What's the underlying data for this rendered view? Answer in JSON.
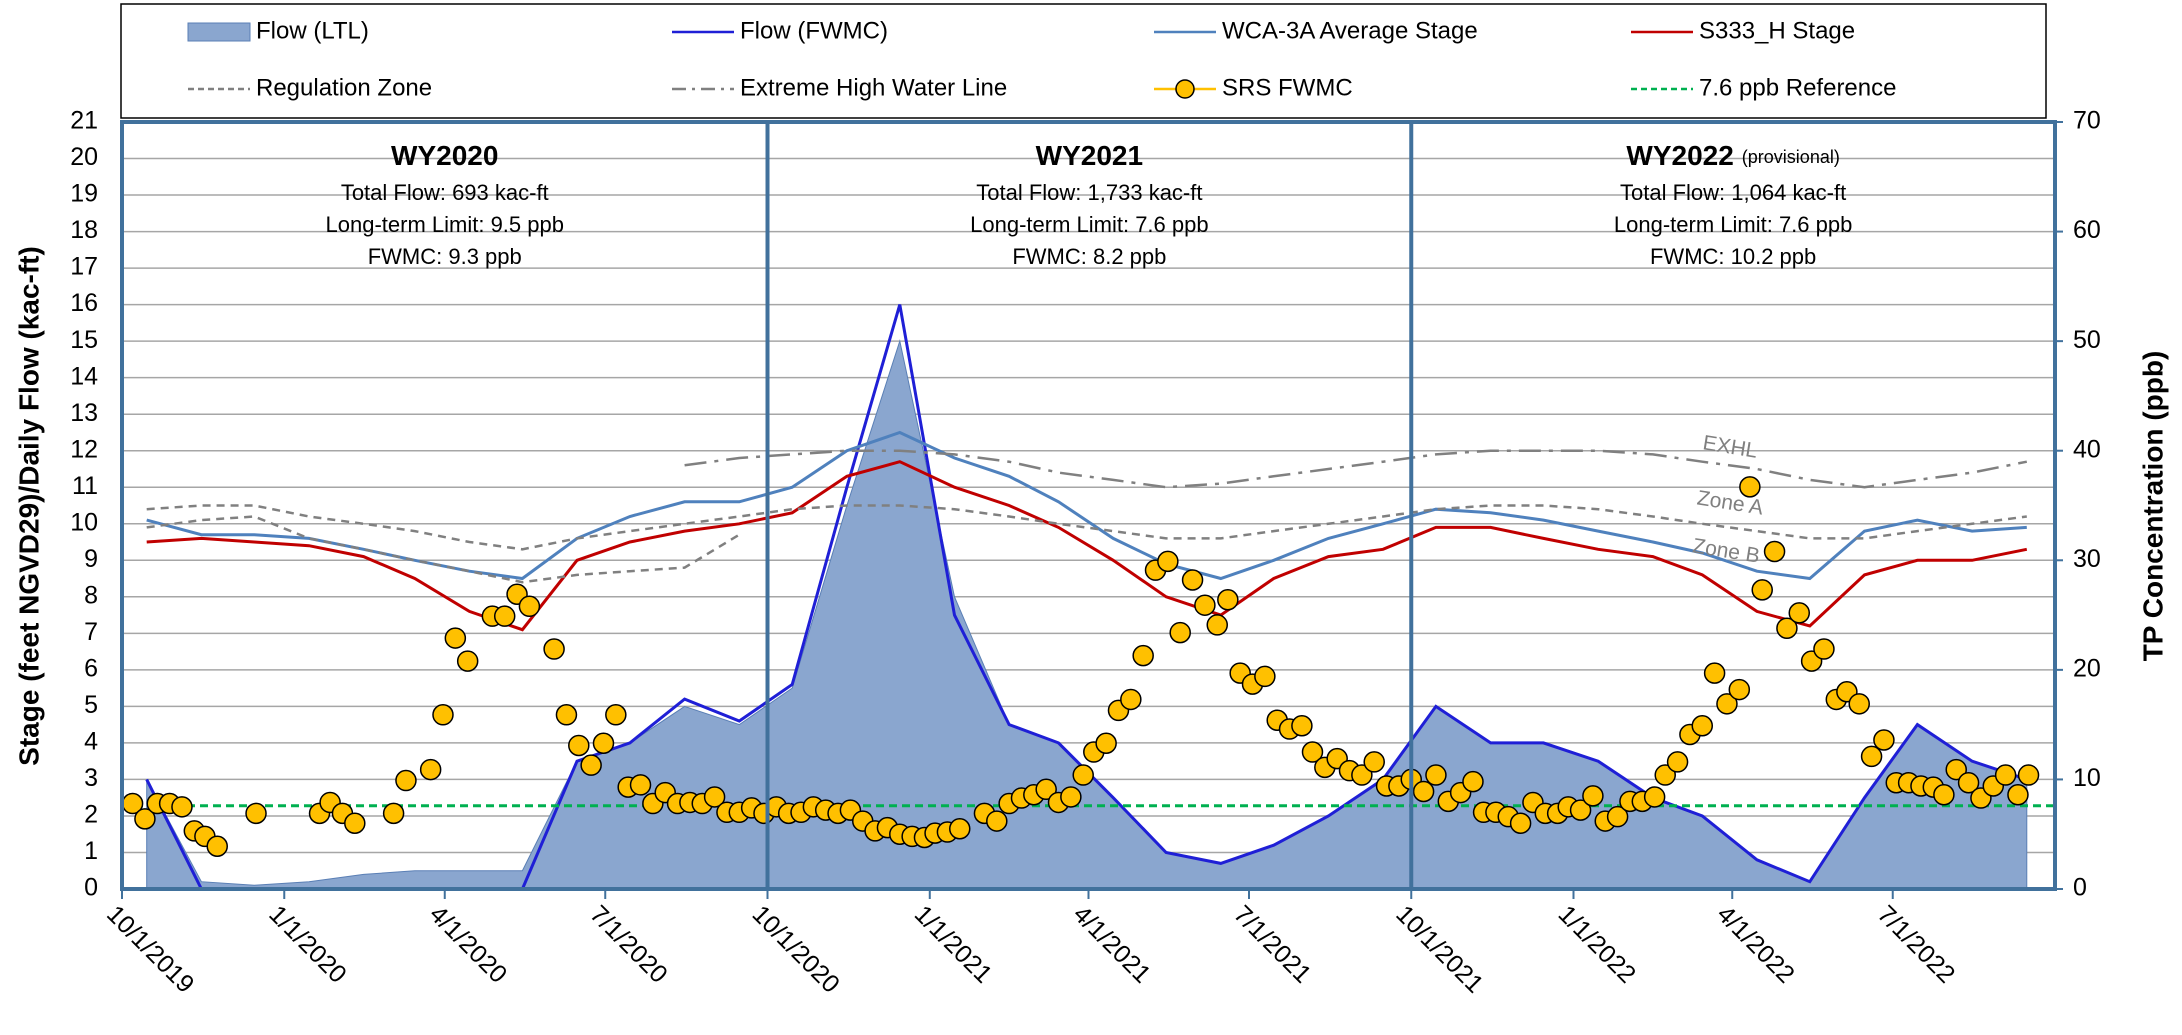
{
  "chart_data": {
    "type": "combo",
    "y_label": "Stage (feet NGVD29)/Daily Flow (kac-ft)",
    "y2_label": "TP Concentration (ppb)",
    "xlim": [
      "10/1/2019",
      "10/1/2022"
    ],
    "xticks": [
      "10/1/2019",
      "1/1/2020",
      "4/1/2020",
      "7/1/2020",
      "10/1/2020",
      "1/1/2021",
      "4/1/2021",
      "7/1/2021",
      "10/1/2021",
      "1/1/2022",
      "4/1/2022",
      "7/1/2022"
    ],
    "ylim": [
      0,
      21
    ],
    "yticks": [
      0,
      1,
      2,
      3,
      4,
      5,
      6,
      7,
      8,
      9,
      10,
      11,
      12,
      13,
      14,
      15,
      16,
      17,
      18,
      19,
      20,
      21
    ],
    "y2lim": [
      0,
      70
    ],
    "y2ticks": [
      0,
      10,
      20,
      30,
      40,
      50,
      60,
      70
    ],
    "grid": true,
    "x": [
      "10/15/2019",
      "11/15/2019",
      "12/15/2019",
      "1/15/2020",
      "2/15/2020",
      "3/15/2020",
      "4/15/2020",
      "5/15/2020",
      "6/15/2020",
      "7/15/2020",
      "8/15/2020",
      "9/15/2020",
      "10/15/2020",
      "11/15/2020",
      "12/15/2020",
      "1/15/2021",
      "2/15/2021",
      "3/15/2021",
      "4/15/2021",
      "5/15/2021",
      "6/15/2021",
      "7/15/2021",
      "8/15/2021",
      "9/15/2021",
      "10/15/2021",
      "11/15/2021",
      "12/15/2021",
      "1/15/2022",
      "2/15/2022",
      "3/15/2022",
      "4/15/2022",
      "5/15/2022",
      "6/15/2022",
      "7/15/2022",
      "8/15/2022",
      "9/15/2022"
    ],
    "series": [
      {
        "name": "Flow (LTL)",
        "type": "area",
        "color": "#8aa6cf",
        "values": [
          3.0,
          0.2,
          0.1,
          0.2,
          0.4,
          0.5,
          0.5,
          0.5,
          3.5,
          4.0,
          5.0,
          4.5,
          5.5,
          10.5,
          15.0,
          8.0,
          4.5,
          4.0,
          2.5,
          1.0,
          0.7,
          1.2,
          2.0,
          3.0,
          5.0,
          4.0,
          4.0,
          3.5,
          2.5,
          2.0,
          0.8,
          0.2,
          2.5,
          4.5,
          3.5,
          3.0
        ]
      },
      {
        "name": "Flow (FWMC)",
        "type": "line",
        "color": "#1f1fd6",
        "values": [
          3.0,
          0,
          0,
          0,
          0,
          0,
          0,
          0,
          3.5,
          4.0,
          5.2,
          4.6,
          5.6,
          11.0,
          16.0,
          7.5,
          4.5,
          4.0,
          2.5,
          1.0,
          0.7,
          1.2,
          2.0,
          3.0,
          5.0,
          4.0,
          4.0,
          3.5,
          2.5,
          2.0,
          0.8,
          0.2,
          2.5,
          4.5,
          3.5,
          3.0
        ]
      },
      {
        "name": "WCA-3A Average Stage",
        "type": "line",
        "color": "#4f81bd",
        "values": [
          10.1,
          9.7,
          9.7,
          9.6,
          9.3,
          9.0,
          8.7,
          8.5,
          9.6,
          10.2,
          10.6,
          10.6,
          11.0,
          12.0,
          12.5,
          11.8,
          11.3,
          10.6,
          9.6,
          8.9,
          8.5,
          9.0,
          9.6,
          10.0,
          10.4,
          10.3,
          10.1,
          9.8,
          9.5,
          9.2,
          8.7,
          8.5,
          9.8,
          10.1,
          9.8,
          9.9
        ]
      },
      {
        "name": "S333_H Stage",
        "type": "line",
        "color": "#c00000",
        "values": [
          9.5,
          9.6,
          9.5,
          9.4,
          9.1,
          8.5,
          7.6,
          7.1,
          9.0,
          9.5,
          9.8,
          10.0,
          10.3,
          11.3,
          11.7,
          11.0,
          10.5,
          9.9,
          9.0,
          8.0,
          7.5,
          8.5,
          9.1,
          9.3,
          9.9,
          9.9,
          9.6,
          9.3,
          9.1,
          8.6,
          7.6,
          7.2,
          8.6,
          9.0,
          9.0,
          9.3
        ]
      },
      {
        "name": "Regulation Zone",
        "type": "line",
        "color": "#808080",
        "dash": "8 6",
        "values": [
          10.4,
          10.5,
          10.5,
          10.2,
          10.0,
          9.8,
          9.5,
          9.3,
          9.6,
          9.8,
          10.0,
          10.2,
          10.4,
          10.5,
          10.5,
          10.4,
          10.2,
          10.0,
          9.8,
          9.6,
          9.6,
          9.8,
          10.0,
          10.2,
          10.4,
          10.5,
          10.5,
          10.4,
          10.2,
          10.0,
          9.8,
          9.6,
          9.6,
          9.8,
          10.0,
          10.2
        ],
        "values_lower": [
          9.9,
          10.1,
          10.2,
          9.6,
          9.3,
          9.0,
          8.7,
          8.4,
          8.6,
          8.7,
          8.8,
          9.7,
          null,
          null,
          null,
          null,
          null,
          null,
          null,
          null,
          null,
          null,
          null,
          null,
          null,
          null,
          null,
          null,
          null,
          null,
          null,
          null,
          null,
          null,
          null,
          null
        ]
      },
      {
        "name": "Extreme High Water Line",
        "type": "line",
        "color": "#808080",
        "dash": "22 8 4 8",
        "values": [
          null,
          null,
          null,
          null,
          null,
          null,
          null,
          null,
          null,
          null,
          11.6,
          11.8,
          11.9,
          12.0,
          12.0,
          11.9,
          11.7,
          11.4,
          11.2,
          11.0,
          11.1,
          11.3,
          11.5,
          11.7,
          11.9,
          12.0,
          12.0,
          12.0,
          11.9,
          11.7,
          11.5,
          11.2,
          11.0,
          11.2,
          11.4,
          11.7
        ]
      },
      {
        "name": "SRS FWMC",
        "type": "dots",
        "axis": "y2",
        "color": "#ffc000",
        "x": [
          "10/7/2019",
          "10/14/2019",
          "10/21/2019",
          "10/28/2019",
          "11/4/2019",
          "11/11/2019",
          "11/17/2019",
          "11/24/2019",
          "12/16/2019",
          "1/21/2020",
          "1/27/2020",
          "2/3/2020",
          "2/10/2020",
          "3/3/2020",
          "3/10/2020",
          "3/24/2020",
          "3/31/2020",
          "4/7/2020",
          "4/14/2020",
          "4/28/2020",
          "5/5/2020",
          "5/12/2020",
          "5/19/2020",
          "6/2/2020",
          "6/9/2020",
          "6/16/2020",
          "6/23/2020",
          "6/30/2020",
          "7/7/2020",
          "7/14/2020",
          "7/21/2020",
          "7/28/2020",
          "8/4/2020",
          "8/11/2020",
          "8/18/2020",
          "8/25/2020",
          "9/1/2020",
          "9/8/2020",
          "9/15/2020",
          "9/22/2020",
          "9/29/2020",
          "10/6/2020",
          "10/13/2020",
          "10/20/2020",
          "10/27/2020",
          "11/3/2020",
          "11/10/2020",
          "11/17/2020",
          "11/24/2020",
          "12/1/2020",
          "12/8/2020",
          "12/15/2020",
          "12/22/2020",
          "12/29/2020",
          "1/4/2021",
          "1/11/2021",
          "1/18/2021",
          "2/1/2021",
          "2/8/2021",
          "2/15/2021",
          "2/22/2021",
          "3/1/2021",
          "3/8/2021",
          "3/15/2021",
          "3/22/2021",
          "3/29/2021",
          "4/4/2021",
          "4/11/2021",
          "4/18/2021",
          "4/25/2021",
          "5/2/2021",
          "5/9/2021",
          "5/16/2021",
          "5/23/2021",
          "5/30/2021",
          "6/6/2021",
          "6/13/2021",
          "6/19/2021",
          "6/26/2021",
          "7/3/2021",
          "7/10/2021",
          "7/17/2021",
          "7/24/2021",
          "7/31/2021",
          "8/6/2021",
          "8/13/2021",
          "8/20/2021",
          "8/27/2021",
          "9/3/2021",
          "9/10/2021",
          "9/17/2021",
          "9/24/2021",
          "10/1/2021",
          "10/8/2021",
          "10/15/2021",
          "10/22/2021",
          "10/29/2021",
          "11/5/2021",
          "11/11/2021",
          "11/18/2021",
          "11/25/2021",
          "12/2/2021",
          "12/9/2021",
          "12/16/2021",
          "12/23/2021",
          "12/29/2021",
          "1/5/2022",
          "1/12/2022",
          "1/19/2022",
          "1/26/2022",
          "2/2/2022",
          "2/9/2022",
          "2/16/2022",
          "2/22/2022",
          "3/1/2022",
          "3/8/2022",
          "3/15/2022",
          "3/22/2022",
          "3/29/2022",
          "4/5/2022",
          "4/11/2022",
          "4/18/2022",
          "4/25/2022",
          "5/2/2022",
          "5/9/2022",
          "5/16/2022",
          "5/23/2022",
          "5/30/2022",
          "6/5/2022",
          "6/12/2022",
          "6/19/2022",
          "6/26/2022",
          "7/3/2022",
          "7/10/2022",
          "7/17/2022",
          "7/24/2022",
          "7/30/2022",
          "8/6/2022",
          "8/13/2022",
          "8/20/2022",
          "8/27/2022",
          "9/3/2022",
          "9/10/2022",
          "9/16/2022"
        ],
        "values": [
          7.8,
          6.4,
          7.8,
          7.8,
          7.5,
          5.3,
          4.8,
          3.9,
          6.9,
          6.9,
          7.9,
          6.9,
          6.0,
          6.9,
          9.9,
          10.9,
          15.9,
          22.9,
          20.8,
          24.9,
          24.9,
          26.9,
          25.8,
          21.9,
          15.9,
          13.1,
          11.3,
          13.3,
          15.9,
          9.3,
          9.5,
          7.8,
          8.8,
          7.8,
          7.9,
          7.8,
          8.4,
          7.0,
          7.0,
          7.4,
          6.9,
          7.5,
          6.9,
          7.0,
          7.5,
          7.2,
          6.9,
          7.2,
          6.2,
          5.3,
          5.6,
          5.0,
          4.8,
          4.7,
          5.1,
          5.2,
          5.5,
          6.9,
          6.2,
          7.8,
          8.3,
          8.6,
          9.1,
          7.9,
          8.4,
          10.4,
          12.5,
          13.3,
          16.3,
          17.3,
          21.3,
          29.1,
          29.9,
          23.4,
          28.2,
          25.9,
          24.1,
          26.4,
          19.7,
          18.7,
          19.4,
          15.4,
          14.6,
          14.9,
          12.5,
          11.1,
          11.9,
          10.8,
          10.4,
          11.6,
          9.4,
          9.4,
          10.0,
          8.9,
          10.4,
          8.0,
          8.8,
          9.8,
          7.0,
          7.0,
          6.6,
          6.0,
          7.9,
          6.9,
          6.9,
          7.5,
          7.2,
          8.5,
          6.2,
          6.6,
          8.0,
          8.0,
          8.4,
          10.4,
          11.6,
          14.1,
          14.9,
          19.7,
          16.9,
          18.2,
          36.7,
          27.3,
          30.8,
          23.8,
          25.2,
          20.8,
          21.9,
          17.3,
          18.0,
          16.9,
          12.1,
          13.6,
          9.7,
          9.7,
          9.4,
          9.3,
          8.6,
          10.9,
          9.7,
          8.3,
          9.4,
          10.4,
          8.6,
          10.4
        ]
      },
      {
        "name": "7.6 ppb Reference",
        "type": "hline",
        "axis": "y2",
        "color": "#00b050",
        "dash": "8 5",
        "value": 7.6
      }
    ],
    "annotations": [
      {
        "title": "WY2020",
        "lines": [
          "Total Flow:  693 kac-ft",
          "Long-term Limit: 9.5 ppb",
          "FWMC:  9.3 ppb"
        ]
      },
      {
        "title": "WY2021",
        "lines": [
          "Total Flow:  1,733 kac-ft",
          "Long-term Limit: 7.6 ppb",
          "FWMC:  8.2 ppb"
        ]
      },
      {
        "title": "WY2022",
        "note": "(provisional)",
        "lines": [
          "Total Flow: 1,064 kac-ft",
          "Long-term Limit: 7.6 ppb",
          "FWMC:  10.2 ppb"
        ]
      }
    ],
    "line_labels": [
      "EXHL",
      "Zone A",
      "Zone B"
    ]
  }
}
